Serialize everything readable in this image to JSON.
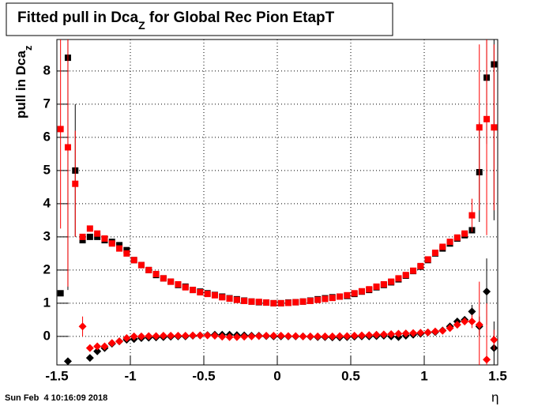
{
  "chart_data": {
    "type": "scatter",
    "title": "Fitted pull in Dca",
    "title_subscript": "Z",
    "title_rest": " for Global Rec Pion EtapT",
    "y_label": "pull in Dca",
    "y_label_subscript": "z",
    "x_label": "η",
    "timestamp": "Sun Feb  4 10:16:09 2018",
    "xlim": [
      -1.5,
      1.5
    ],
    "ylim": [
      -0.86,
      8.95
    ],
    "xticks": [
      -1.5,
      -1,
      -0.5,
      0,
      0.5,
      1,
      1.5
    ],
    "yticks": [
      0,
      1,
      2,
      3,
      4,
      5,
      6,
      7,
      8
    ],
    "grid": true,
    "x": [
      -1.475,
      -1.425,
      -1.375,
      -1.325,
      -1.275,
      -1.225,
      -1.175,
      -1.125,
      -1.075,
      -1.025,
      -0.975,
      -0.925,
      -0.875,
      -0.825,
      -0.775,
      -0.725,
      -0.675,
      -0.625,
      -0.575,
      -0.525,
      -0.475,
      -0.425,
      -0.375,
      -0.325,
      -0.275,
      -0.225,
      -0.175,
      -0.125,
      -0.075,
      -0.025,
      0.025,
      0.075,
      0.125,
      0.175,
      0.225,
      0.275,
      0.325,
      0.375,
      0.425,
      0.475,
      0.525,
      0.575,
      0.625,
      0.675,
      0.725,
      0.775,
      0.825,
      0.875,
      0.925,
      0.975,
      1.025,
      1.075,
      1.125,
      1.175,
      1.225,
      1.275,
      1.325,
      1.375,
      1.425,
      1.475
    ],
    "series": [
      {
        "color": "#000000",
        "marker": "square",
        "values": [
          1.3,
          8.4,
          5.0,
          2.9,
          3.0,
          3.0,
          2.9,
          2.85,
          2.75,
          2.6,
          2.3,
          2.15,
          2.0,
          1.85,
          1.75,
          1.65,
          1.55,
          1.5,
          1.4,
          1.35,
          1.3,
          1.25,
          1.2,
          1.15,
          1.12,
          1.08,
          1.05,
          1.03,
          1.02,
          1.0,
          1.0,
          1.02,
          1.03,
          1.05,
          1.08,
          1.12,
          1.15,
          1.18,
          1.2,
          1.22,
          1.28,
          1.35,
          1.4,
          1.48,
          1.55,
          1.63,
          1.72,
          1.83,
          1.97,
          2.1,
          2.3,
          2.5,
          2.65,
          2.8,
          2.95,
          3.05,
          3.2,
          4.95,
          7.8,
          8.2
        ],
        "errors": [
          null,
          7,
          2,
          null,
          null,
          null,
          null,
          null,
          null,
          null,
          null,
          null,
          null,
          null,
          null,
          null,
          null,
          null,
          null,
          null,
          null,
          null,
          null,
          null,
          null,
          null,
          null,
          null,
          null,
          null,
          null,
          null,
          null,
          null,
          null,
          null,
          null,
          null,
          null,
          null,
          null,
          null,
          null,
          null,
          null,
          null,
          null,
          null,
          null,
          null,
          null,
          null,
          null,
          null,
          null,
          null,
          null,
          1.5,
          2,
          4.7
        ]
      },
      {
        "color": "#ff0000",
        "marker": "square",
        "values": [
          6.25,
          5.7,
          4.6,
          3.0,
          3.25,
          3.1,
          2.95,
          2.8,
          2.65,
          2.5,
          2.3,
          2.15,
          2.0,
          1.88,
          1.75,
          1.65,
          1.57,
          1.48,
          1.4,
          1.33,
          1.28,
          1.24,
          1.18,
          1.14,
          1.1,
          1.07,
          1.05,
          1.04,
          1.02,
          1.0,
          1.0,
          1.01,
          1.03,
          1.05,
          1.07,
          1.1,
          1.13,
          1.16,
          1.2,
          1.24,
          1.3,
          1.36,
          1.42,
          1.5,
          1.57,
          1.65,
          1.75,
          1.85,
          1.98,
          2.12,
          2.32,
          2.52,
          2.7,
          2.85,
          2.98,
          3.1,
          3.65,
          6.3,
          6.55,
          6.3
        ],
        "errors": [
          3,
          4.2,
          1.6,
          null,
          null,
          null,
          null,
          null,
          null,
          null,
          null,
          null,
          null,
          null,
          null,
          null,
          null,
          null,
          null,
          null,
          null,
          null,
          null,
          null,
          null,
          null,
          null,
          null,
          null,
          null,
          null,
          null,
          null,
          null,
          null,
          null,
          null,
          null,
          null,
          null,
          null,
          null,
          null,
          null,
          null,
          null,
          null,
          null,
          null,
          null,
          null,
          null,
          null,
          null,
          null,
          null,
          0.5,
          2.5,
          3.5,
          2.5
        ]
      },
      {
        "color": "#000000",
        "marker": "diamond",
        "values": [
          null,
          -0.75,
          null,
          null,
          -0.65,
          -0.45,
          -0.35,
          -0.22,
          -0.15,
          -0.1,
          -0.08,
          -0.05,
          -0.04,
          -0.03,
          -0.02,
          -0.01,
          0.0,
          0.0,
          0.02,
          0.03,
          0.04,
          0.05,
          0.05,
          0.05,
          0.04,
          0.03,
          0.02,
          0.02,
          0.01,
          0.0,
          0.0,
          0.0,
          0.0,
          0.0,
          -0.01,
          -0.02,
          -0.02,
          -0.03,
          -0.03,
          -0.02,
          -0.01,
          0.0,
          0.0,
          0.01,
          0.02,
          0.0,
          -0.02,
          0.02,
          0.05,
          0.08,
          0.12,
          0.13,
          0.18,
          0.3,
          0.45,
          0.5,
          0.75,
          0.3,
          1.35,
          -0.35
        ],
        "errors": [
          null,
          null,
          null,
          null,
          null,
          null,
          null,
          null,
          null,
          null,
          null,
          null,
          null,
          null,
          null,
          null,
          null,
          null,
          null,
          null,
          null,
          null,
          null,
          null,
          null,
          null,
          null,
          null,
          null,
          null,
          null,
          null,
          null,
          null,
          null,
          null,
          null,
          null,
          null,
          null,
          null,
          null,
          null,
          null,
          null,
          null,
          null,
          null,
          null,
          null,
          null,
          null,
          null,
          null,
          null,
          null,
          0.2,
          0.3,
          1.0,
          0.8
        ]
      },
      {
        "color": "#ff0000",
        "marker": "diamond",
        "values": [
          null,
          null,
          null,
          0.3,
          -0.35,
          -0.3,
          -0.3,
          -0.2,
          -0.15,
          -0.05,
          0.0,
          0.0,
          0.01,
          0.01,
          0.02,
          0.02,
          0.02,
          0.02,
          0.03,
          0.03,
          0.03,
          0.02,
          -0.01,
          -0.02,
          -0.02,
          -0.01,
          0.0,
          0.01,
          0.02,
          0.02,
          0.02,
          0.01,
          0.01,
          0.0,
          0.0,
          0.0,
          0.0,
          0.0,
          0.01,
          0.01,
          0.02,
          0.03,
          0.04,
          0.05,
          0.06,
          0.07,
          0.08,
          0.09,
          0.1,
          0.11,
          0.12,
          0.15,
          0.17,
          0.25,
          0.35,
          0.45,
          0.45,
          0.35,
          -0.7,
          -0.1
        ],
        "errors": [
          null,
          null,
          null,
          0.3,
          null,
          null,
          null,
          null,
          null,
          null,
          null,
          null,
          null,
          null,
          null,
          null,
          null,
          null,
          null,
          null,
          null,
          null,
          null,
          null,
          null,
          null,
          null,
          null,
          null,
          null,
          null,
          null,
          null,
          null,
          null,
          null,
          null,
          null,
          null,
          null,
          null,
          null,
          null,
          null,
          null,
          null,
          null,
          null,
          null,
          null,
          null,
          null,
          null,
          null,
          null,
          null,
          0.2,
          1.3,
          1.7,
          0.3
        ]
      }
    ]
  }
}
